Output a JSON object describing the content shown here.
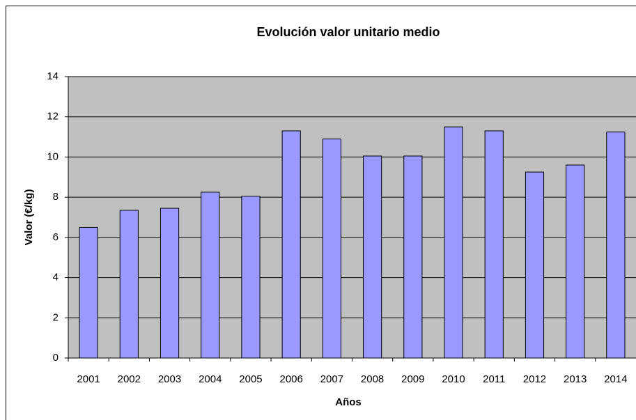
{
  "chart_data": {
    "type": "bar",
    "title": "Evolución valor unitario medio",
    "x_label": "Años",
    "y_label": "Valor (€/kg)",
    "categories": [
      "2001",
      "2002",
      "2003",
      "2004",
      "2005",
      "2006",
      "2007",
      "2008",
      "2009",
      "2010",
      "2011",
      "2012",
      "2013",
      "2014"
    ],
    "values": [
      6.5,
      7.35,
      7.45,
      8.25,
      8.05,
      11.3,
      10.9,
      10.05,
      10.05,
      11.5,
      11.3,
      9.25,
      9.6,
      11.25
    ],
    "color": "#9999ff",
    "plot_background": "#c0c0c0",
    "ylim": [
      0,
      14
    ],
    "yticks": [
      0,
      2,
      4,
      6,
      8,
      10,
      12,
      14
    ],
    "grid": true
  }
}
